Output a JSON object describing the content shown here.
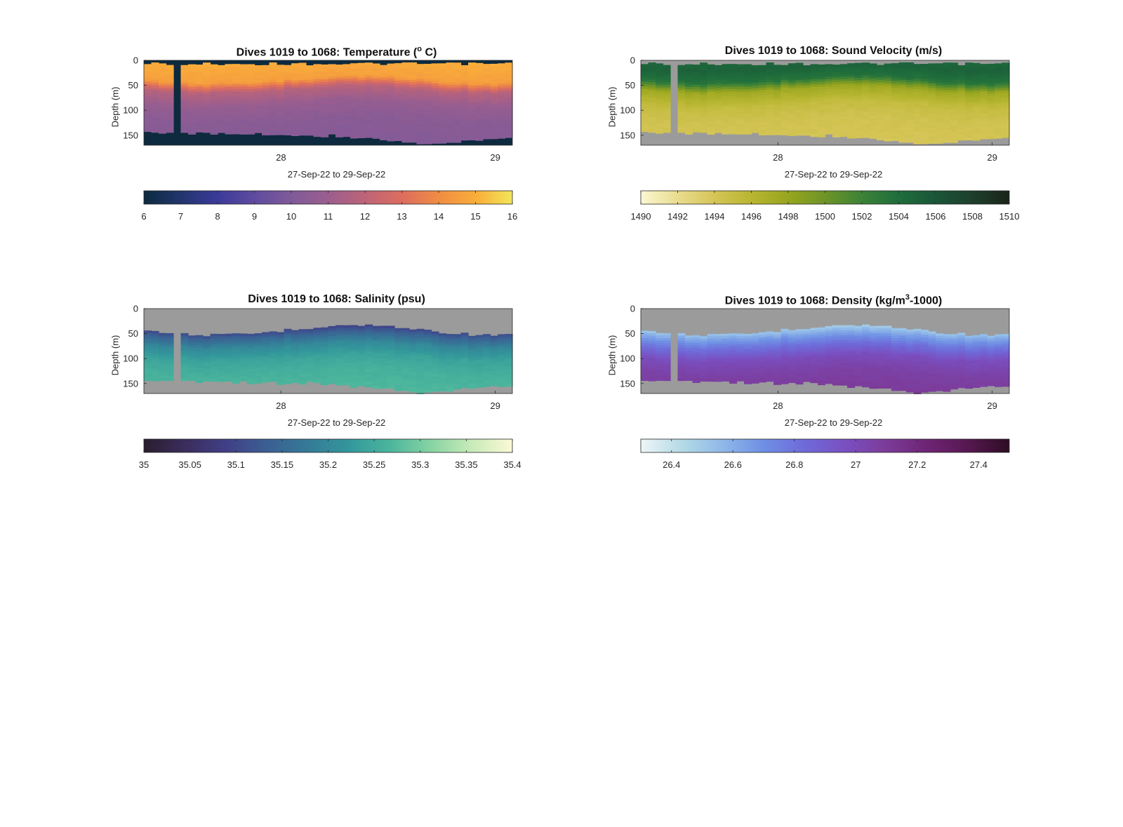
{
  "chart_data": [
    {
      "type": "heatmap",
      "title": "Dives 1019 to 1068: Temperature (",
      "title_sup": "o",
      "title_tail": " C)",
      "ylabel": "Depth (m)",
      "xlabel": "27-Sep-22 to 29-Sep-22",
      "yticks": [
        "0",
        "50",
        "100",
        "150"
      ],
      "xticks": [
        "28",
        "29"
      ],
      "ylim": [
        0,
        170
      ],
      "xlim": [
        27.36,
        29.08
      ],
      "colorbar": {
        "min": 6,
        "max": 16,
        "ticks": [
          "6",
          "7",
          "8",
          "9",
          "10",
          "11",
          "12",
          "13",
          "14",
          "15",
          "16"
        ],
        "colors": [
          "#0d2a3e",
          "#22356e",
          "#3b3a99",
          "#5f4b9f",
          "#7f5a99",
          "#9b5e8e",
          "#bd6478",
          "#dc6d5f",
          "#f08c43",
          "#f9ad3a",
          "#f2e65a"
        ]
      },
      "mask_color": "#0d2a3e",
      "profile": {
        "depth": [
          0,
          40,
          60,
          90,
          120,
          170
        ],
        "values": [
          15.0,
          14.6,
          11.8,
          10.8,
          10.4,
          10.2
        ]
      },
      "gap_dive": 4
    },
    {
      "type": "heatmap",
      "title": "Dives 1019 to 1068: Sound Velocity (m/s)",
      "ylabel": "Depth (m)",
      "xlabel": "27-Sep-22 to 29-Sep-22",
      "yticks": [
        "0",
        "50",
        "100",
        "150"
      ],
      "xticks": [
        "28",
        "29"
      ],
      "ylim": [
        0,
        170
      ],
      "xlim": [
        27.36,
        29.08
      ],
      "colorbar": {
        "min": 1490,
        "max": 1510,
        "ticks": [
          "1490",
          "1492",
          "1494",
          "1496",
          "1498",
          "1500",
          "1502",
          "1504",
          "1506",
          "1508",
          "1510"
        ],
        "colors": [
          "#fbf7d2",
          "#e9dc8f",
          "#d5c557",
          "#b8b631",
          "#97a51f",
          "#6e9427",
          "#3c8237",
          "#1f6d3c",
          "#1a5638",
          "#1d3f2b",
          "#1a2419"
        ]
      },
      "mask_color": "#9b9b9b",
      "profile": {
        "depth": [
          0,
          15,
          40,
          60,
          90,
          120,
          170
        ],
        "values": [
          1504.5,
          1505.0,
          1503.5,
          1497.5,
          1495.2,
          1494.4,
          1494.0
        ]
      },
      "gap_dive": 4
    },
    {
      "type": "heatmap",
      "title": "Dives 1019 to 1068: Salinity (psu)",
      "ylabel": "Depth (m)",
      "xlabel": "27-Sep-22 to 29-Sep-22",
      "yticks": [
        "0",
        "50",
        "100",
        "150"
      ],
      "xticks": [
        "28",
        "29"
      ],
      "ylim": [
        0,
        170
      ],
      "xlim": [
        27.36,
        29.08
      ],
      "colorbar": {
        "min": 35,
        "max": 35.4,
        "ticks": [
          "35",
          "35.05",
          "35.1",
          "35.15",
          "35.2",
          "35.25",
          "35.3",
          "35.35",
          "35.4"
        ],
        "colors": [
          "#2a1d2f",
          "#3b2d5c",
          "#403f86",
          "#3b5f93",
          "#357a97",
          "#33979b",
          "#4bb59c",
          "#86d3a3",
          "#c8eab8",
          "#fcf9d6"
        ]
      },
      "mask_color": "#9b9b9b",
      "profile": {
        "depth": [
          40,
          55,
          75,
          100,
          130,
          170
        ],
        "values": [
          35.08,
          35.14,
          35.2,
          35.24,
          35.26,
          35.27
        ]
      },
      "gap_dive": 4
    },
    {
      "type": "heatmap",
      "title": "Dives 1019 to 1068: Density (kg/m",
      "title_sup": "3",
      "title_tail": "-1000)",
      "ylabel": "Depth (m)",
      "xlabel": "27-Sep-22 to 29-Sep-22",
      "yticks": [
        "0",
        "50",
        "100",
        "150"
      ],
      "xticks": [
        "28",
        "29"
      ],
      "ylim": [
        0,
        170
      ],
      "xlim": [
        27.36,
        29.08
      ],
      "colorbar": {
        "min": 26.3,
        "max": 27.5,
        "ticks": [
          "26.4",
          "26.6",
          "26.8",
          "27",
          "27.2",
          "27.4"
        ],
        "colors": [
          "#eef5f7",
          "#b4dae6",
          "#8fb8e8",
          "#6f8fe4",
          "#6f6ad9",
          "#7a4fc0",
          "#7c3b99",
          "#6e2474",
          "#561850",
          "#2e0c24"
        ]
      },
      "mask_color": "#9b9b9b",
      "profile": {
        "depth": [
          40,
          55,
          75,
          100,
          130,
          170
        ],
        "values": [
          26.45,
          26.62,
          26.8,
          26.98,
          27.06,
          27.1
        ]
      },
      "gap_dive": 4
    }
  ]
}
